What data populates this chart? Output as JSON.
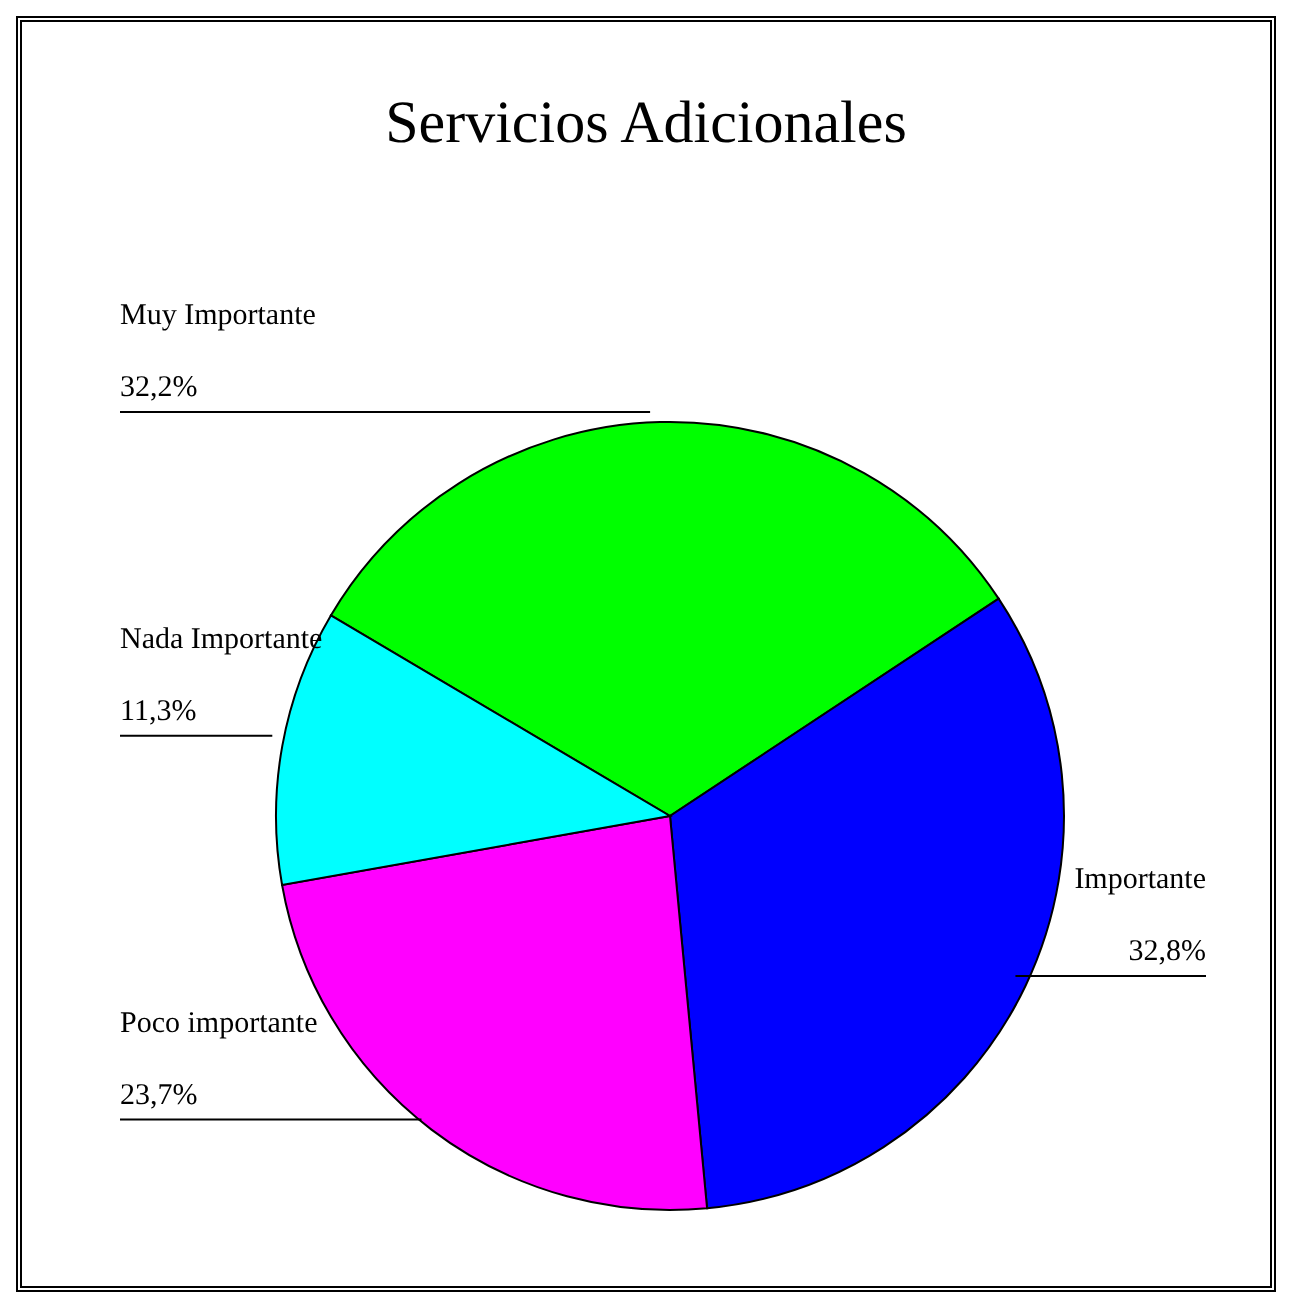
{
  "chart_data": {
    "type": "pie",
    "title": "Servicios Adicionales",
    "categories": [
      "Muy Importante",
      "Importante",
      "Poco importante",
      "Nada Importante"
    ],
    "values": [
      32.2,
      32.8,
      23.7,
      11.3
    ],
    "value_labels": [
      "32,2%",
      "32,8%",
      "23,7%",
      "11,3%"
    ],
    "colors": [
      "#00ff00",
      "#0000ff",
      "#ff00ff",
      "#00ffff"
    ],
    "legend": false
  }
}
